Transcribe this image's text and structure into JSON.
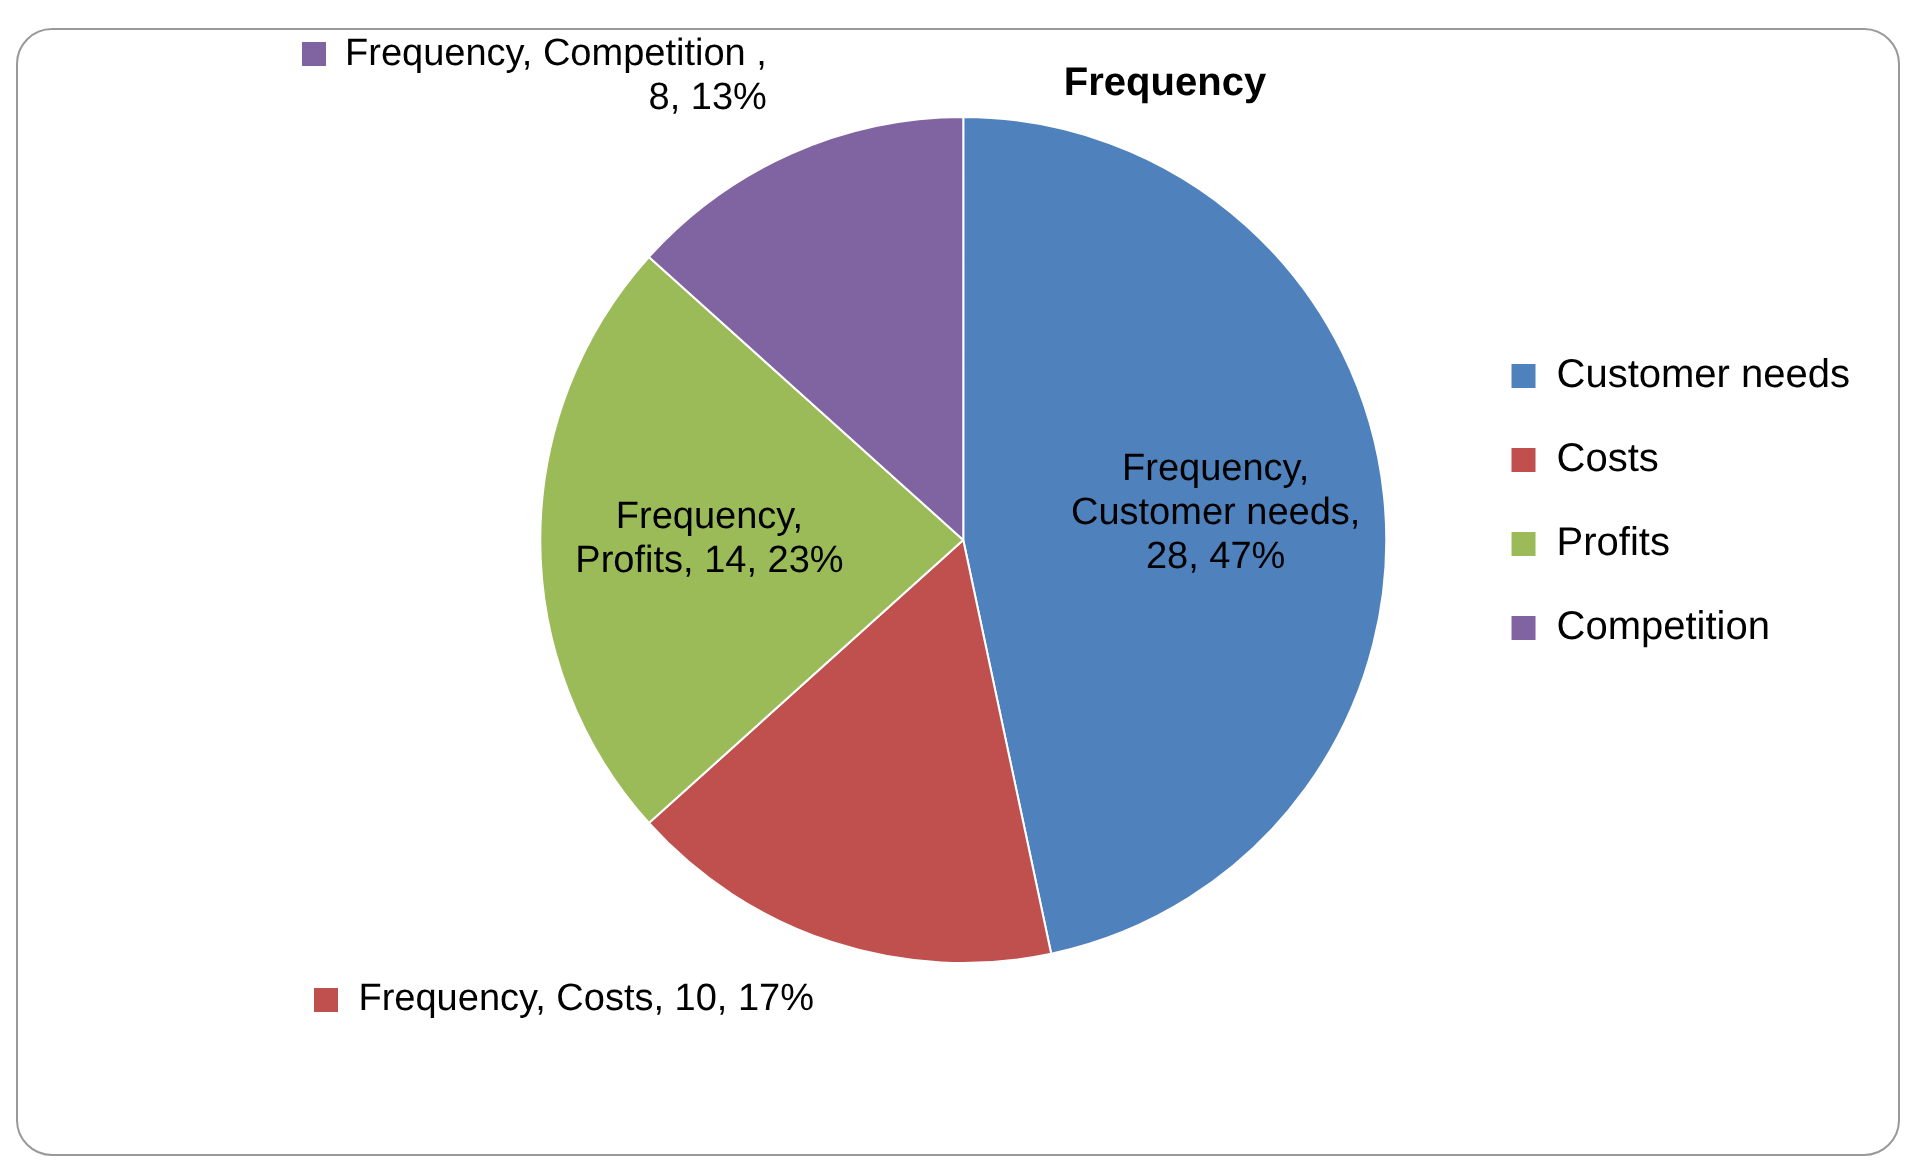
{
  "chart_data": {
    "type": "pie",
    "title": "Frequency",
    "categories": [
      "Customer needs",
      "Costs",
      "Profits",
      "Competition"
    ],
    "values": [
      28,
      10,
      14,
      8
    ],
    "colors": [
      "#4f81bd",
      "#c0504d",
      "#9bbb59",
      "#8064a2"
    ],
    "value_labels": [
      "Frequency, Customer needs, 28, 47%",
      "Frequency, Costs, 10, 17%",
      "Frequency, Profits, 14, 23%",
      "Frequency, Competition , 8, 13%"
    ],
    "legend": "right"
  }
}
